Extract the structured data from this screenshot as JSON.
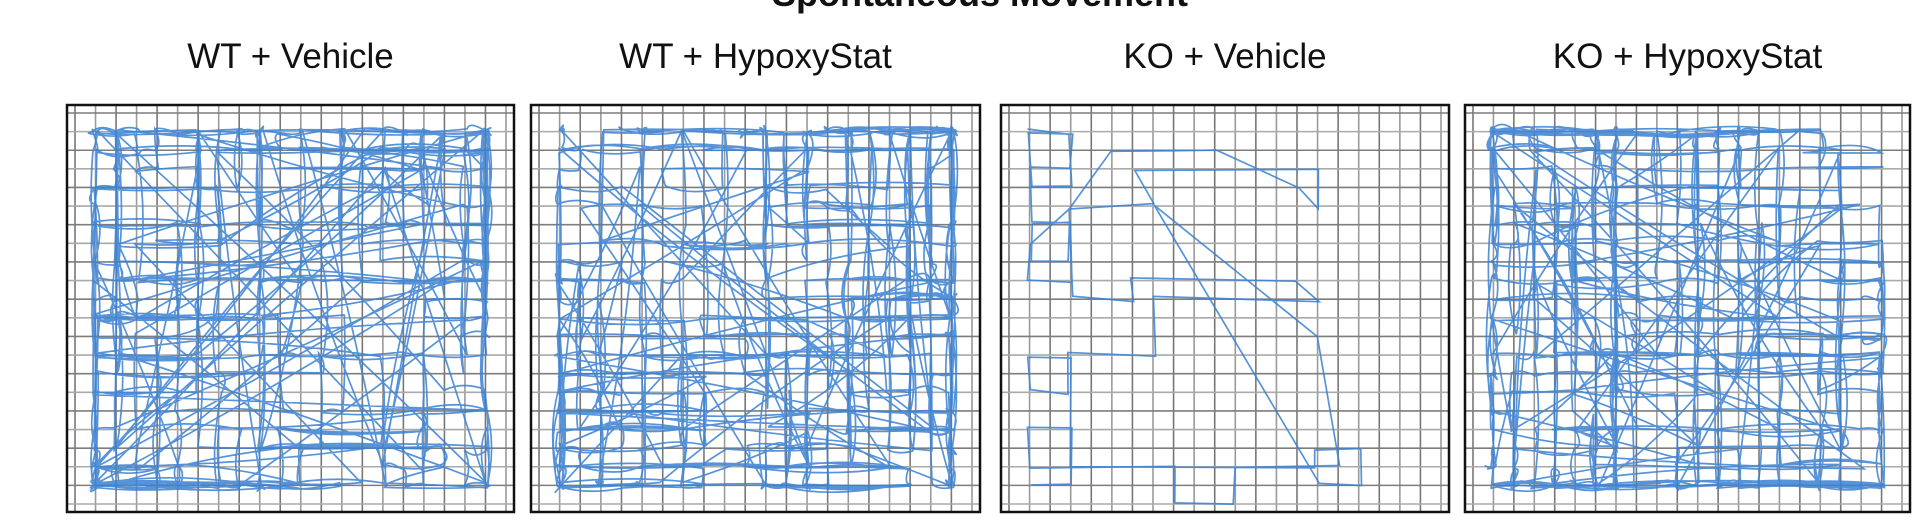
{
  "title": "Spontaneous Movement",
  "panels": [
    {
      "label": "WT + Vehicle"
    },
    {
      "label": "WT + HypoxyStat"
    },
    {
      "label": "KO + Vehicle"
    },
    {
      "label": "KO + HypoxyStat"
    }
  ]
}
